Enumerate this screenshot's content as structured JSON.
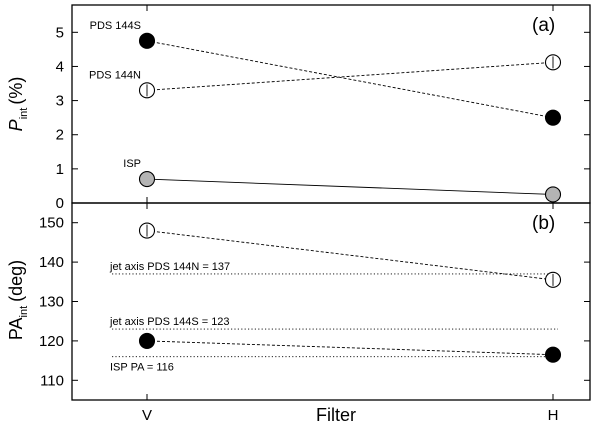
{
  "chart_data": [
    {
      "type": "scatter",
      "panel_label": "(a)",
      "categories": [
        "V",
        "H"
      ],
      "ylabel": "P",
      "ylabel_sub": "int",
      "ylabel_unit": "(%)",
      "ylim": [
        0,
        5.8
      ],
      "yticks": [
        0,
        1,
        2,
        3,
        4,
        5
      ],
      "series": [
        {
          "name": "PDS 144S",
          "values": [
            4.75,
            2.5
          ],
          "marker": "filled",
          "fill": "#000000",
          "line": "dashed"
        },
        {
          "name": "PDS 144N",
          "values": [
            3.3,
            4.12
          ],
          "marker": "open-errorbar",
          "fill": "#ffffff",
          "line": "dashed"
        },
        {
          "name": "ISP",
          "values": [
            0.7,
            0.25
          ],
          "marker": "gray",
          "fill": "#b4b4b4",
          "line": "solid"
        }
      ]
    },
    {
      "type": "scatter",
      "panel_label": "(b)",
      "categories": [
        "V",
        "H"
      ],
      "xlabel": "Filter",
      "ylabel": "PA",
      "ylabel_sub": "int",
      "ylabel_unit": "(deg)",
      "ylim": [
        105,
        155
      ],
      "yticks": [
        110,
        120,
        130,
        140,
        150
      ],
      "series": [
        {
          "values": [
            148,
            135.5
          ],
          "marker": "open-errorbar",
          "fill": "#ffffff",
          "line": "dashed"
        },
        {
          "values": [
            120,
            116.5
          ],
          "marker": "filled",
          "fill": "#000000",
          "line": "dashed"
        }
      ],
      "reference_lines": [
        {
          "label": "jet axis PDS 144N = 137",
          "value": 137
        },
        {
          "label": "jet axis PDS 144S = 123",
          "value": 123
        },
        {
          "label": "ISP PA = 116",
          "value": 116
        }
      ]
    }
  ]
}
